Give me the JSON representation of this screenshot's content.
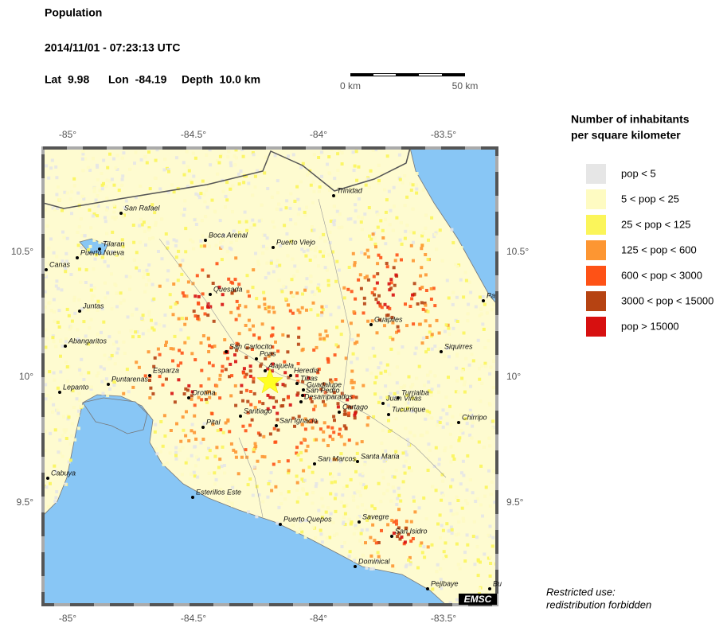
{
  "header": {
    "title": "Population",
    "datetime": "2014/11/01 - 07:23:13 UTC",
    "location": [
      {
        "label": "Lat",
        "value": "9.98"
      },
      {
        "label": "Lon",
        "value": "-84.19"
      },
      {
        "label": "Depth",
        "value": "10.0 km"
      }
    ]
  },
  "scale_bar": {
    "labels": [
      "0 km",
      "50 km"
    ]
  },
  "map": {
    "lon_ticks": [
      "-85°",
      "-84.5°",
      "-84°",
      "-83.5°"
    ],
    "lat_ticks": [
      "10.5°",
      "10°",
      "9.5°"
    ],
    "cities": [
      "Trinidad",
      "San Rafael",
      "Boca Arenal",
      "Puerto Viejo",
      "Tilaran",
      "Puerto Nueva",
      "Canas",
      "Quesada",
      "Juntas",
      "Guapiles",
      "Siquirres",
      "Abangaritos",
      "San Carlocito",
      "Poas",
      "Alajuela",
      "Heredia",
      "Tibas",
      "Guadalupe",
      "San Pedro",
      "Esparza",
      "Puntarenas",
      "Lepanto",
      "Orotina",
      "Desamparados",
      "Turrialba",
      "Juan Viñas",
      "Cartago",
      "Tucurrique",
      "Santiago",
      "Chirripo",
      "Pital",
      "San Ignacio",
      "Santa Maria",
      "San Marcos",
      "Cabuya",
      "Esterillos Este",
      "Puerto Quepos",
      "Savegre",
      "San Isidro",
      "Dominical",
      "Pejibaye",
      "Pa",
      "Bu"
    ],
    "logo": "EMSC"
  },
  "legend": {
    "title": [
      "Number of inhabitants",
      "per square kilometer"
    ],
    "items": [
      {
        "label": "pop < 5",
        "color": "#e6e6e6"
      },
      {
        "label": "5 < pop < 25",
        "color": "#fefbc2"
      },
      {
        "label": "25 < pop < 125",
        "color": "#fbf55a"
      },
      {
        "label": "125 < pop < 600",
        "color": "#fd9632"
      },
      {
        "label": "600 < pop < 3000",
        "color": "#fe5216"
      },
      {
        "label": "3000 < pop < 15000",
        "color": "#b64312"
      },
      {
        "label": "pop > 15000",
        "color": "#d71010"
      }
    ]
  },
  "notice": [
    "Restricted use:",
    "redistribution forbidden"
  ]
}
